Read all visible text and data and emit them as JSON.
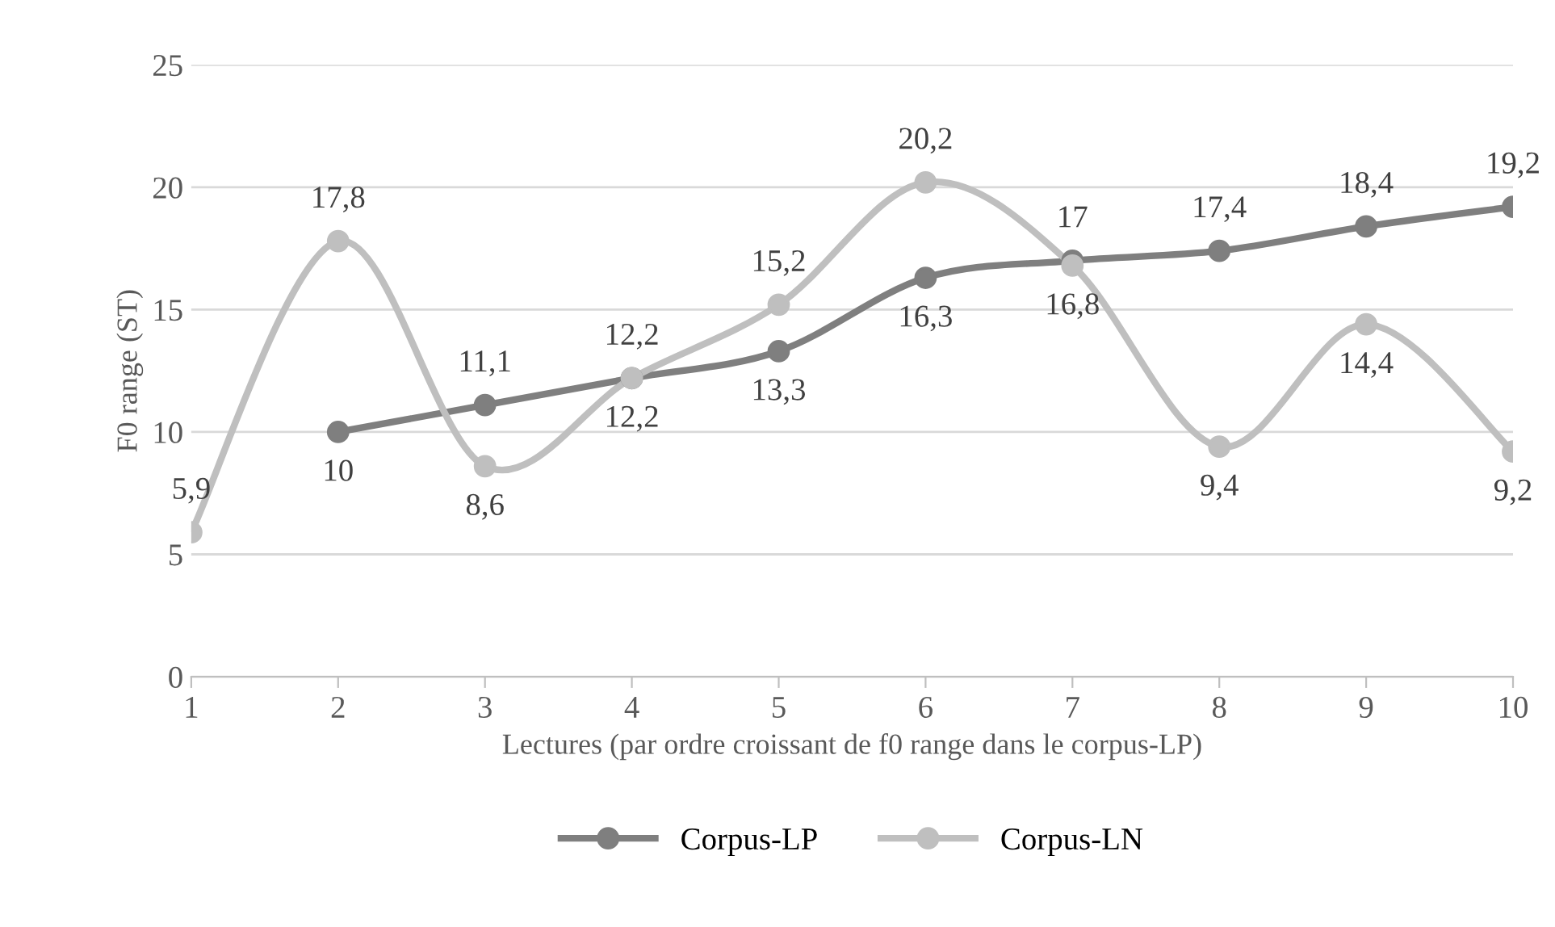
{
  "chart_data": {
    "type": "line",
    "xlabel": "Lectures (par ordre croissant de f0 range dans le corpus-LP)",
    "ylabel": "F0 range (ST)",
    "categories": [
      "1",
      "2",
      "3",
      "4",
      "5",
      "6",
      "7",
      "8",
      "9",
      "10"
    ],
    "series": [
      {
        "name": "Corpus-LP",
        "color": "#7f7f7f",
        "values": [
          null,
          10,
          11.1,
          12.2,
          13.3,
          16.3,
          17,
          17.4,
          18.4,
          19.2
        ],
        "value_labels": [
          null,
          "10",
          "11,1",
          "12,2",
          "13,3",
          "16,3",
          "17",
          "17,4",
          "18,4",
          "19,2"
        ]
      },
      {
        "name": "Corpus-LN",
        "color": "#bfbfbf",
        "values": [
          5.9,
          17.8,
          8.6,
          12.2,
          15.2,
          20.2,
          16.8,
          9.4,
          14.4,
          9.2
        ],
        "value_labels": [
          "5,9",
          "17,8",
          "8,6",
          "12,2",
          "15,2",
          "20,2",
          "16,8",
          "9,4",
          "14,4",
          "9,2"
        ]
      }
    ],
    "ylim": [
      0,
      25
    ],
    "yticks": [
      0,
      5,
      10,
      15,
      20,
      25
    ],
    "grid": "y",
    "legend": "bottom",
    "marker": "circle",
    "line_style": "solid"
  }
}
